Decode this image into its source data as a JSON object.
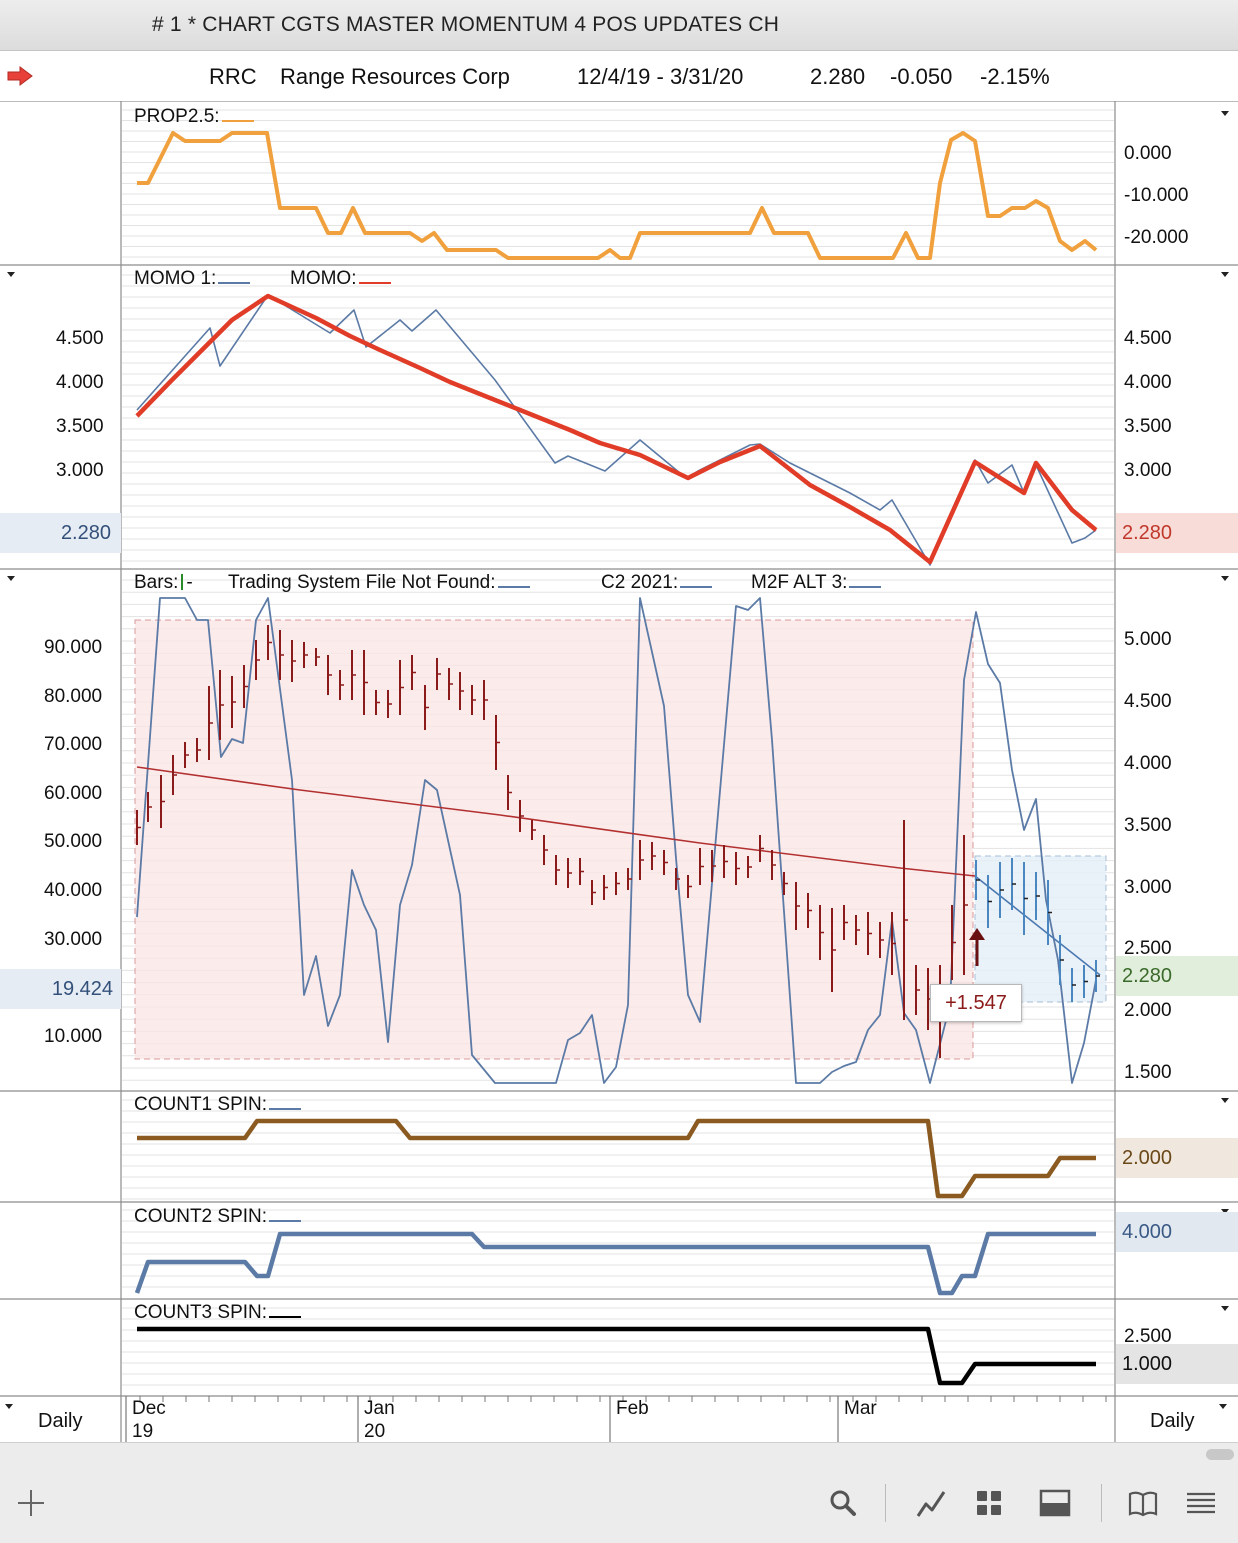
{
  "window": {
    "title": "# 1 * CHART CGTS MASTER MOMENTUM 4 POS UPDATES CH"
  },
  "header": {
    "symbol": "RRC",
    "company": "Range Resources Corp",
    "range": "12/4/19 - 3/31/20",
    "last": "2.280",
    "change": "-0.050",
    "change_pct": "-2.15%"
  },
  "panes": {
    "prop": {
      "label": "PROP2.5:",
      "color": "#f0a03c",
      "ticks": [
        "0.000",
        "-10.000",
        "-20.000"
      ]
    },
    "momo": {
      "label1": "MOMO 1:",
      "label2": "MOMO:",
      "color1": "#5878a8",
      "color2": "#e03c28",
      "ticks": [
        "4.500",
        "4.000",
        "3.500",
        "3.000"
      ],
      "left_badge": "2.280",
      "right_badge": "2.280"
    },
    "bars": {
      "label_bars": "Bars:",
      "label_ts": "Trading System File Not Found:",
      "label_c2": "C2 2021:",
      "label_m2f": "M2F ALT 3:",
      "left_ticks": [
        "90.000",
        "80.000",
        "70.000",
        "60.000",
        "50.000",
        "40.000",
        "30.000",
        "10.000"
      ],
      "right_ticks": [
        "5.000",
        "4.500",
        "4.000",
        "3.500",
        "3.000",
        "2.500",
        "2.000",
        "1.500"
      ],
      "left_badge": "19.424",
      "right_badge": "2.280",
      "callout": "+1.547"
    },
    "count1": {
      "label": "COUNT1 SPIN:",
      "color": "#8a5a20",
      "badge": "2.000"
    },
    "count2": {
      "label": "COUNT2 SPIN:",
      "color": "#5b7aa6",
      "badge": "4.000"
    },
    "count3": {
      "label": "COUNT3 SPIN:",
      "color": "#000000",
      "ticks": [
        "2.500"
      ],
      "badge": "1.000"
    }
  },
  "time_axis": {
    "left_period": "Daily",
    "right_period": "Daily",
    "months": [
      {
        "m": "Dec",
        "y": "19"
      },
      {
        "m": "Jan",
        "y": "20"
      },
      {
        "m": "Feb",
        "y": ""
      },
      {
        "m": "Mar",
        "y": ""
      }
    ]
  },
  "toolbar": {
    "icons": [
      "plus-icon",
      "search-icon",
      "draw-line-icon",
      "grid-icon",
      "panel-icon",
      "book-icon",
      "menu-icon"
    ]
  }
}
